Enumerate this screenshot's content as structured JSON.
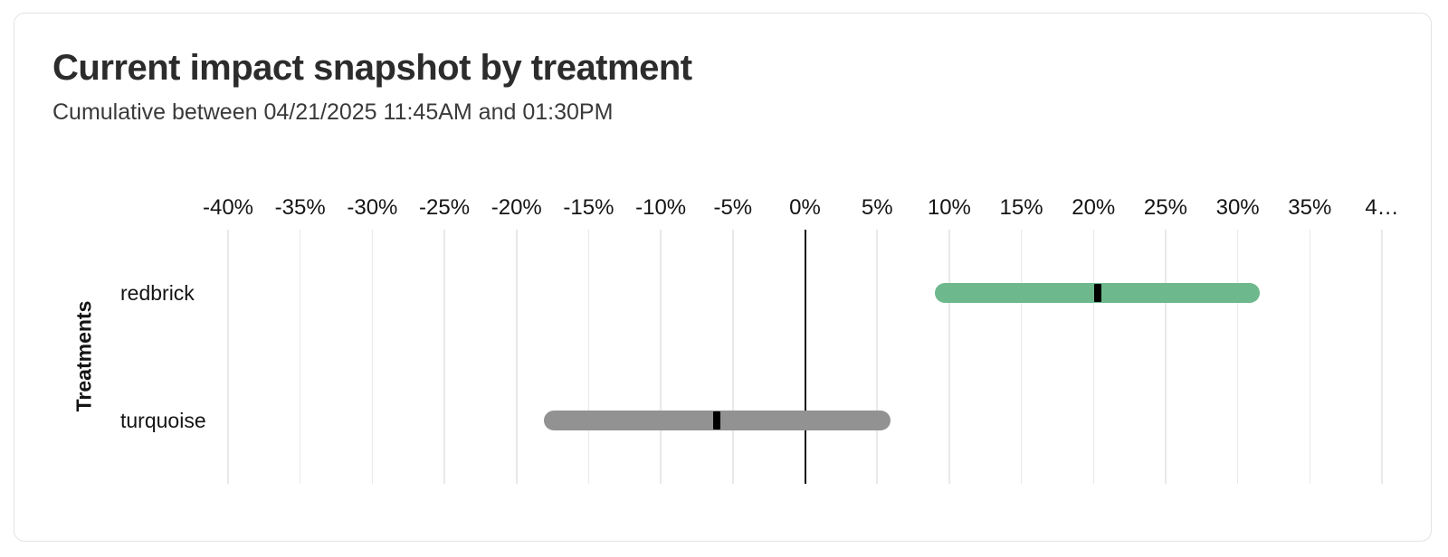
{
  "card": {
    "title": "Current impact snapshot by treatment",
    "subtitle": "Cumulative between 04/21/2025 11:45AM and 01:30PM"
  },
  "chart_data": {
    "type": "bar",
    "orientation": "horizontal",
    "title": "Current impact snapshot by treatment",
    "subtitle": "Cumulative between 04/21/2025 11:45AM and 01:30PM",
    "xlabel": "",
    "ylabel": "Treatments",
    "xlim": [
      -40,
      40
    ],
    "x_unit": "%",
    "grid": "vertical",
    "zero_line": true,
    "x_ticks": [
      {
        "value": -40,
        "label": "-40%"
      },
      {
        "value": -35,
        "label": "-35%"
      },
      {
        "value": -30,
        "label": "-30%"
      },
      {
        "value": -25,
        "label": "-25%"
      },
      {
        "value": -20,
        "label": "-20%"
      },
      {
        "value": -15,
        "label": "-15%"
      },
      {
        "value": -10,
        "label": "-10%"
      },
      {
        "value": -5,
        "label": "-5%"
      },
      {
        "value": 0,
        "label": "0%"
      },
      {
        "value": 5,
        "label": "5%"
      },
      {
        "value": 10,
        "label": "10%"
      },
      {
        "value": 15,
        "label": "15%"
      },
      {
        "value": 20,
        "label": "20%"
      },
      {
        "value": 25,
        "label": "25%"
      },
      {
        "value": 30,
        "label": "30%"
      },
      {
        "value": 35,
        "label": "35%"
      },
      {
        "value": 40,
        "label": "4…"
      }
    ],
    "categories": [
      "redbrick",
      "turquoise"
    ],
    "series": [
      {
        "name": "redbrick",
        "lower": 9.0,
        "upper": 31.5,
        "point": 20.3,
        "color": "#6db88c"
      },
      {
        "name": "turquoise",
        "lower": -18.1,
        "upper": 5.9,
        "point": -6.1,
        "color": "#929292"
      }
    ],
    "colors": {
      "positive_bar": "#6db88c",
      "neutral_bar": "#929292",
      "marker": "#000000",
      "gridline": "#e9e9e9",
      "zero_line": "#0a0a0a"
    }
  }
}
